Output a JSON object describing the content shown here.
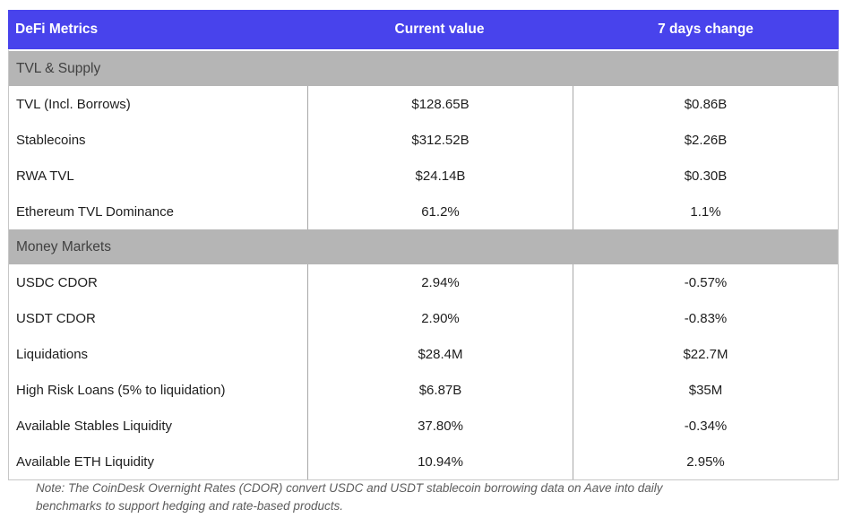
{
  "colors": {
    "header_bg": "#4843ec",
    "header_text": "#ffffff",
    "section_bg": "#b5b5b5",
    "section_text": "#414141",
    "data_text": "#1e1e1e",
    "column_divider": "#a8a8a8",
    "table_border": "#c7c7c7",
    "note_text": "#5c5c5c"
  },
  "chart_data": {
    "type": "table",
    "columns": [
      "DeFi Metrics",
      "Current value",
      "7 days change"
    ],
    "sections": [
      {
        "title": "TVL & Supply",
        "rows": [
          {
            "label": "TVL (Incl. Borrows)",
            "current": "$128.65B",
            "change": "$0.86B"
          },
          {
            "label": "Stablecoins",
            "current": "$312.52B",
            "change": "$2.26B"
          },
          {
            "label": "RWA TVL",
            "current": "$24.14B",
            "change": "$0.30B"
          },
          {
            "label": "Ethereum TVL Dominance",
            "current": "61.2%",
            "change": "1.1%"
          }
        ]
      },
      {
        "title": "Money Markets",
        "rows": [
          {
            "label": "USDC CDOR",
            "current": "2.94%",
            "change": "-0.57%"
          },
          {
            "label": "USDT CDOR",
            "current": "2.90%",
            "change": "-0.83%"
          },
          {
            "label": "Liquidations",
            "current": "$28.4M",
            "change": "$22.7M"
          },
          {
            "label": "High Risk Loans (5% to liquidation)",
            "current": "$6.87B",
            "change": "$35M"
          },
          {
            "label": "Available Stables Liquidity",
            "current": "37.80%",
            "change": "-0.34%"
          },
          {
            "label": "Available ETH Liquidity",
            "current": "10.94%",
            "change": "2.95%"
          }
        ]
      }
    ]
  },
  "note": {
    "lines": [
      "Note: The CoinDesk Overnight Rates (CDOR) convert USDC and USDT stablecoin borrowing data on Aave into daily",
      "benchmarks to support hedging and rate-based products."
    ]
  }
}
